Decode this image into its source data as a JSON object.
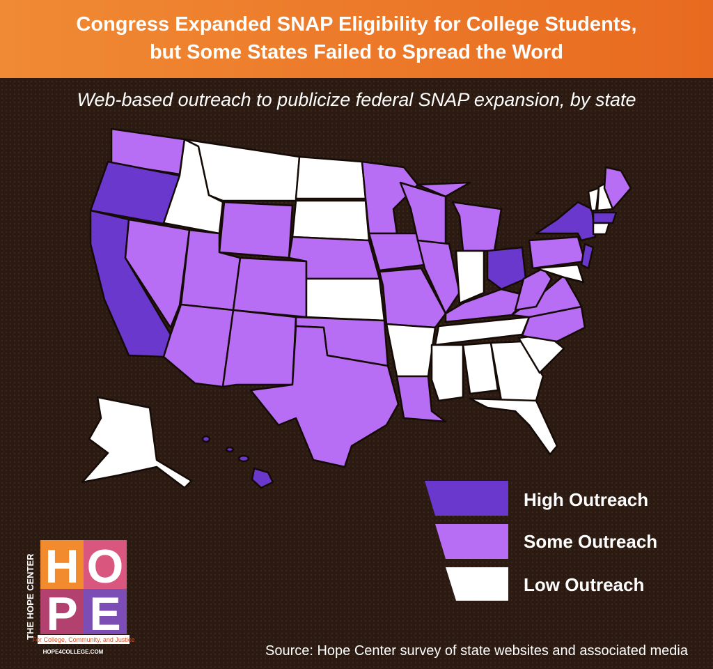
{
  "header": {
    "title": [
      "Congress Expanded SNAP Eligibility for College Students,",
      "but Some States Failed to Spread the Word"
    ]
  },
  "subtitle": "Web-based outreach to publicize federal SNAP expansion, by state",
  "legend": [
    {
      "label": "High Outreach"
    },
    {
      "label": "Some Outreach"
    },
    {
      "label": "Low Outreach"
    }
  ],
  "logo": {
    "side_text": "THE HOPE CENTER",
    "letters": [
      "H",
      "O",
      "P",
      "E"
    ],
    "tagline": "For College, Community, and Justice",
    "url": "HOPE4COLLEGE.COM"
  },
  "source": "Source: Hope Center survey of state websites and associated media"
}
